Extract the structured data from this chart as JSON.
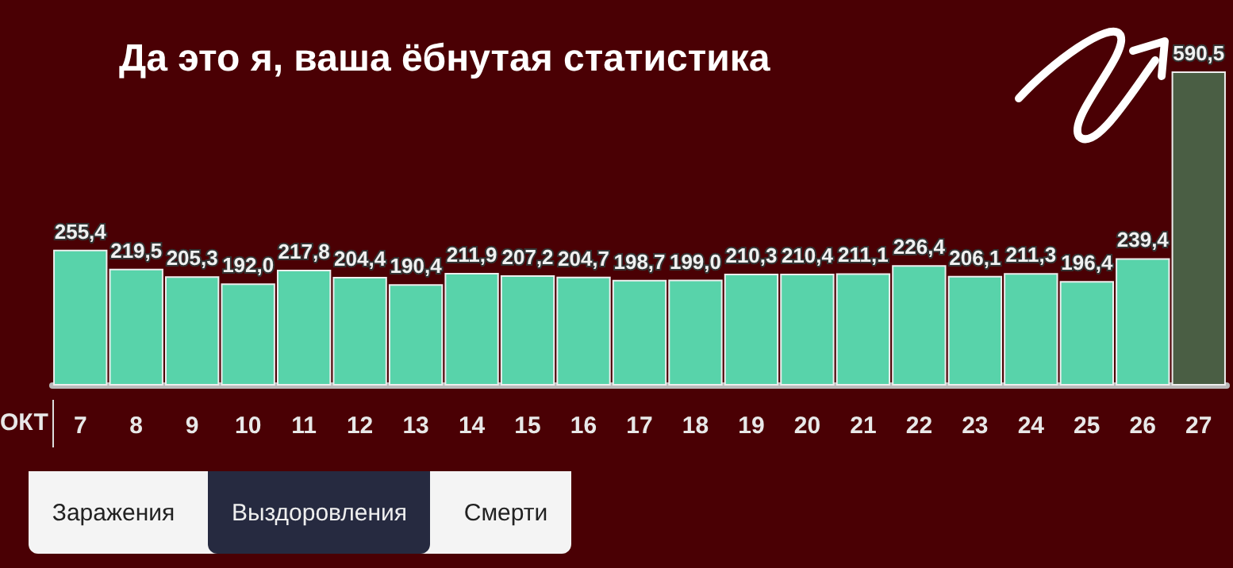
{
  "chart_data": {
    "type": "bar",
    "title": "Да это я, ваша ёбнутая статистика",
    "xlabel": "ОКТ",
    "categories": [
      "7",
      "8",
      "9",
      "10",
      "11",
      "12",
      "13",
      "14",
      "15",
      "16",
      "17",
      "18",
      "19",
      "20",
      "21",
      "22",
      "23",
      "24",
      "25",
      "26",
      "27"
    ],
    "values": [
      255.4,
      219.5,
      205.3,
      192.0,
      217.8,
      204.4,
      190.4,
      211.9,
      207.2,
      204.7,
      198.7,
      199.0,
      210.3,
      210.4,
      211.1,
      226.4,
      206.1,
      211.3,
      196.4,
      239.4,
      590.5
    ],
    "value_labels": [
      "255,4",
      "219,5",
      "205,3",
      "192,0",
      "217,8",
      "204,4",
      "190,4",
      "211,9",
      "207,2",
      "204,7",
      "198,7",
      "199,0",
      "210,3",
      "210,4",
      "211,1",
      "226,4",
      "206,1",
      "211,3",
      "196,4",
      "239,4",
      "590,5"
    ],
    "colors": [
      "#58d3aa",
      "#58d3aa",
      "#58d3aa",
      "#58d3aa",
      "#58d3aa",
      "#58d3aa",
      "#58d3aa",
      "#58d3aa",
      "#58d3aa",
      "#58d3aa",
      "#58d3aa",
      "#58d3aa",
      "#58d3aa",
      "#58d3aa",
      "#58d3aa",
      "#58d3aa",
      "#58d3aa",
      "#58d3aa",
      "#58d3aa",
      "#58d3aa",
      "#4a5e44"
    ],
    "annotations": [
      "Заражения",
      "Выздоровления",
      "Смерти"
    ]
  }
}
